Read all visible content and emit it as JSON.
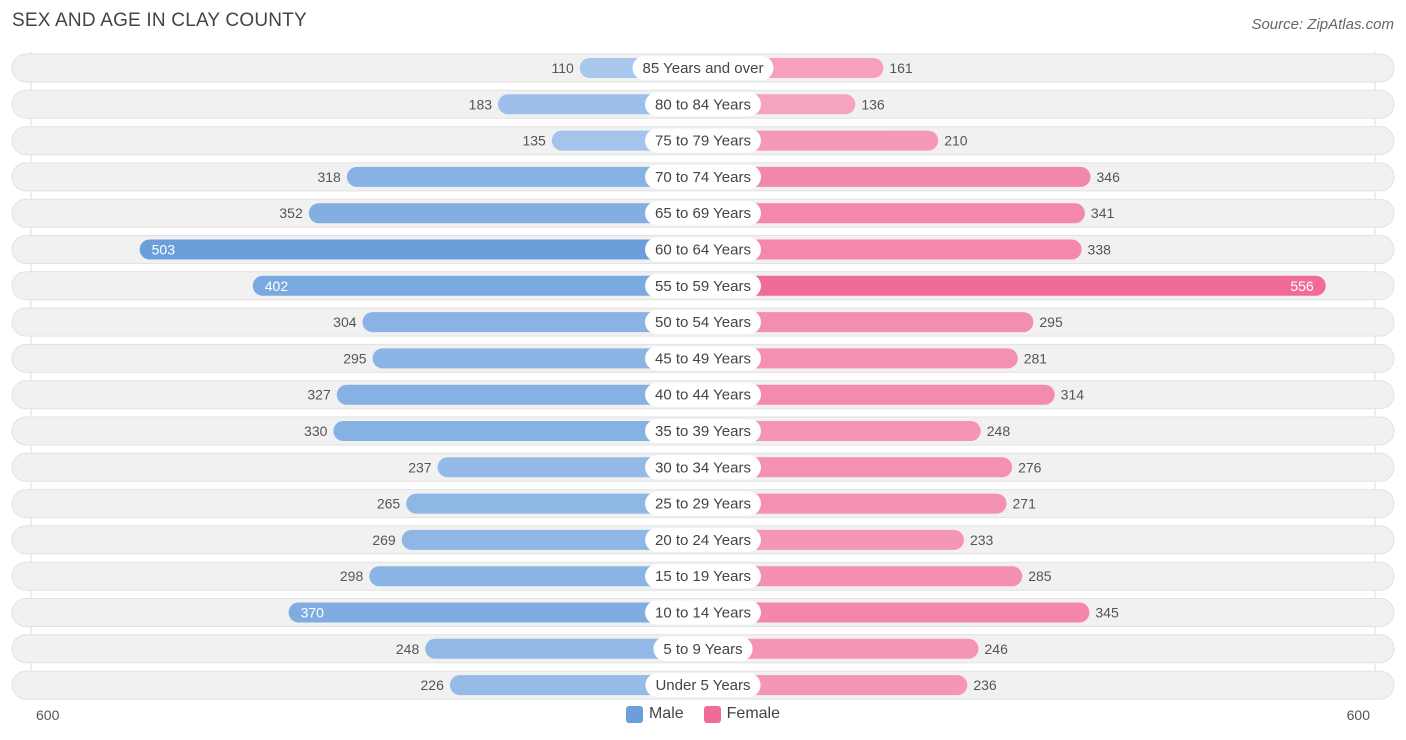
{
  "title": "SEX AND AGE IN CLAY COUNTY",
  "source": "Source: ZipAtlas.com",
  "legend": {
    "male": "Male",
    "female": "Female"
  },
  "axis": {
    "left_label": "600",
    "right_label": "600"
  },
  "colors": {
    "male": "#6a9fdc",
    "male_light": "#a9c8ec",
    "female": "#f06b96",
    "female_light": "#f7a8c2",
    "row_bg": "#f1f1f1"
  },
  "chart_data": {
    "type": "bar",
    "orientation": "horizontal-butterfly",
    "title": "SEX AND AGE IN CLAY COUNTY",
    "xlim": [
      -600,
      600
    ],
    "categories": [
      "85 Years and over",
      "80 to 84 Years",
      "75 to 79 Years",
      "70 to 74 Years",
      "65 to 69 Years",
      "60 to 64 Years",
      "55 to 59 Years",
      "50 to 54 Years",
      "45 to 49 Years",
      "40 to 44 Years",
      "35 to 39 Years",
      "30 to 34 Years",
      "25 to 29 Years",
      "20 to 24 Years",
      "15 to 19 Years",
      "10 to 14 Years",
      "5 to 9 Years",
      "Under 5 Years"
    ],
    "series": [
      {
        "name": "Male",
        "values": [
          110,
          183,
          135,
          318,
          352,
          503,
          402,
          304,
          295,
          327,
          330,
          237,
          265,
          269,
          298,
          370,
          248,
          226
        ]
      },
      {
        "name": "Female",
        "values": [
          161,
          136,
          210,
          346,
          341,
          338,
          556,
          295,
          281,
          314,
          248,
          276,
          271,
          233,
          285,
          345,
          246,
          236
        ]
      }
    ],
    "legend_position": "bottom-center"
  }
}
